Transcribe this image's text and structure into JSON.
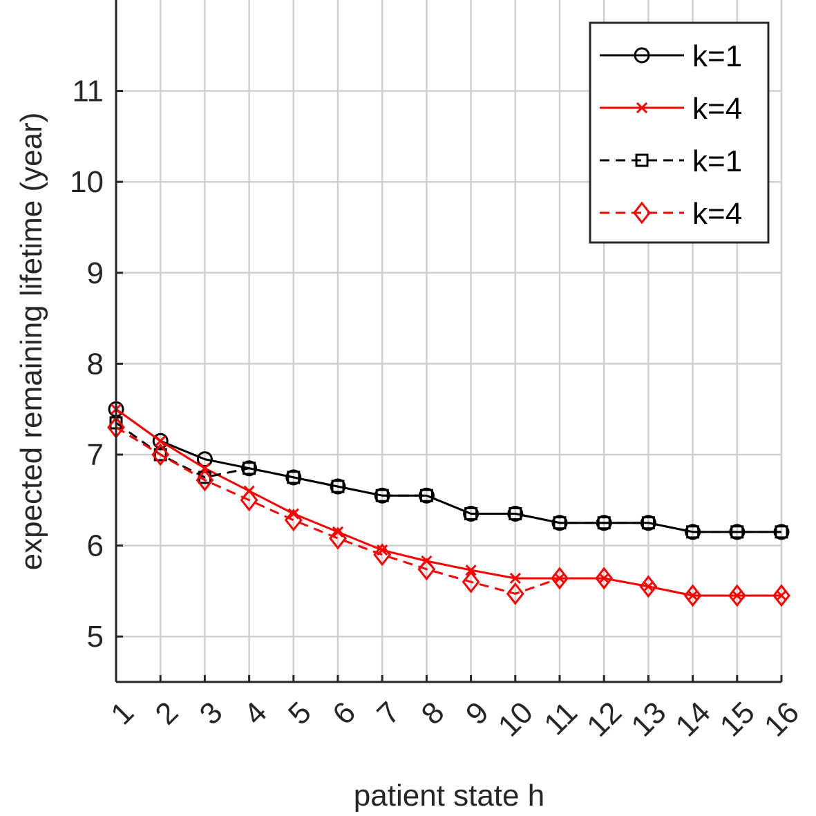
{
  "chart_data": {
    "type": "line",
    "xlabel": "patient state h",
    "ylabel": "expected remaining lifetime (year)",
    "x": [
      1,
      2,
      3,
      4,
      5,
      6,
      7,
      8,
      9,
      10,
      11,
      12,
      13,
      14,
      15,
      16
    ],
    "x_tick_labels": [
      "1",
      "2",
      "3",
      "4",
      "5",
      "6",
      "7",
      "8",
      "9",
      "10",
      "11",
      "12",
      "13",
      "14",
      "15",
      "16"
    ],
    "xlim": [
      1,
      16
    ],
    "ylim": [
      4.5,
      12
    ],
    "y_ticks": [
      5,
      6,
      7,
      8,
      9,
      10,
      11
    ],
    "y_tick_labels": [
      "5",
      "6",
      "7",
      "8",
      "9",
      "10",
      "11"
    ],
    "grid": true,
    "legend_position": "top-right",
    "series": [
      {
        "name": "k=1",
        "color": "#000000",
        "line_style": "solid",
        "marker": "circle",
        "values": [
          7.5,
          7.15,
          6.95,
          6.85,
          6.75,
          6.65,
          6.55,
          6.55,
          6.35,
          6.35,
          6.25,
          6.25,
          6.25,
          6.15,
          6.15,
          6.15
        ]
      },
      {
        "name": "k=4",
        "color": "#ff0000",
        "line_style": "solid",
        "marker": "x",
        "values": [
          7.5,
          7.15,
          6.85,
          6.6,
          6.35,
          6.15,
          5.95,
          5.83,
          5.73,
          5.64,
          5.64,
          5.64,
          5.55,
          5.45,
          5.45,
          5.45
        ]
      },
      {
        "name": "k=1",
        "color": "#000000",
        "line_style": "dashed",
        "marker": "square",
        "values": [
          7.35,
          7.0,
          6.75,
          6.85,
          6.75,
          6.65,
          6.55,
          6.55,
          6.35,
          6.35,
          6.25,
          6.25,
          6.25,
          6.15,
          6.15,
          6.15
        ]
      },
      {
        "name": "k=4",
        "color": "#ff0000",
        "line_style": "dashed",
        "marker": "diamond",
        "values": [
          7.3,
          7.0,
          6.72,
          6.5,
          6.28,
          6.08,
          5.9,
          5.74,
          5.6,
          5.47,
          5.64,
          5.64,
          5.55,
          5.45,
          5.45,
          5.45
        ]
      }
    ]
  }
}
